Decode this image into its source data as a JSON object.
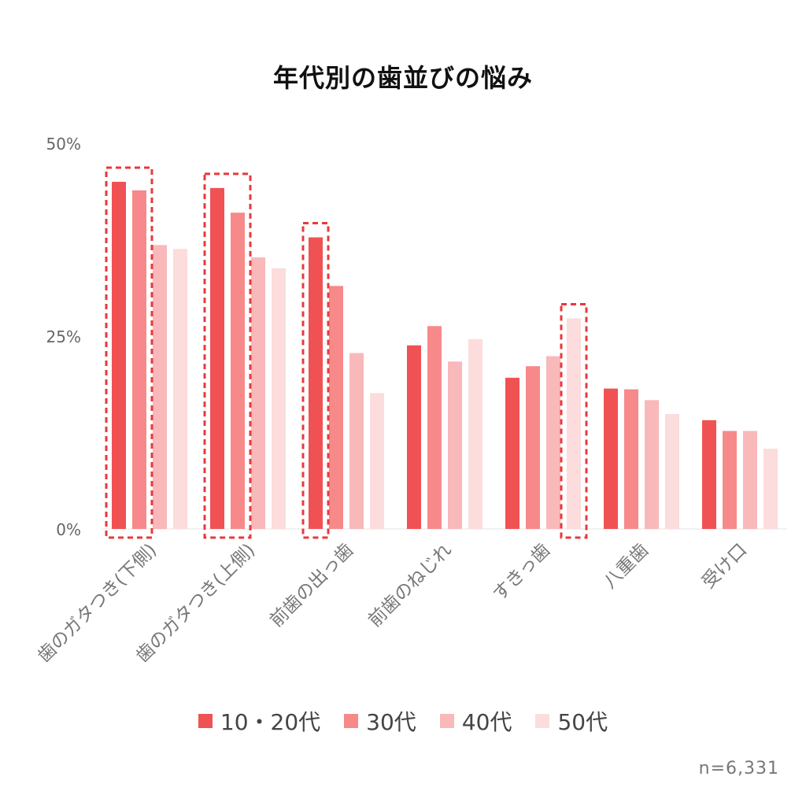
{
  "chart_data": {
    "type": "bar",
    "title": "年代別の歯並びの悩み",
    "categories": [
      "歯のガタつき(下側)",
      "歯のガタつき(上側)",
      "前歯の出っ歯",
      "前歯のねじれ",
      "すきっ歯",
      "八重歯",
      "受け口"
    ],
    "series": [
      {
        "name": "10・20代",
        "color": "#f05254",
        "values": [
          45,
          44.2,
          37.8,
          23.8,
          19.6,
          18.2,
          14.1
        ]
      },
      {
        "name": "30代",
        "color": "#f7898a",
        "values": [
          43.9,
          41,
          31.5,
          26.3,
          21.1,
          18.1,
          12.7
        ]
      },
      {
        "name": "40代",
        "color": "#f9b8b9",
        "values": [
          36.8,
          35.2,
          22.8,
          21.7,
          22.4,
          16.7,
          12.7
        ]
      },
      {
        "name": "50代",
        "color": "#fcdcdc",
        "values": [
          36.3,
          33.8,
          17.6,
          24.6,
          27.3,
          14.9,
          10.4
        ]
      }
    ],
    "ylim": [
      0,
      50
    ],
    "yticks": [
      "0%",
      "25%",
      "50%"
    ],
    "ytick_values": [
      0,
      25,
      50
    ],
    "highlights": [
      {
        "category": 0,
        "series": [
          0,
          1
        ]
      },
      {
        "category": 1,
        "series": [
          0,
          1
        ]
      },
      {
        "category": 2,
        "series": [
          0
        ]
      },
      {
        "category": 4,
        "series": [
          3
        ]
      }
    ],
    "highlight_color": "#e8393c",
    "legend_position": "bottom",
    "grid": false,
    "note": "n=6,331"
  }
}
